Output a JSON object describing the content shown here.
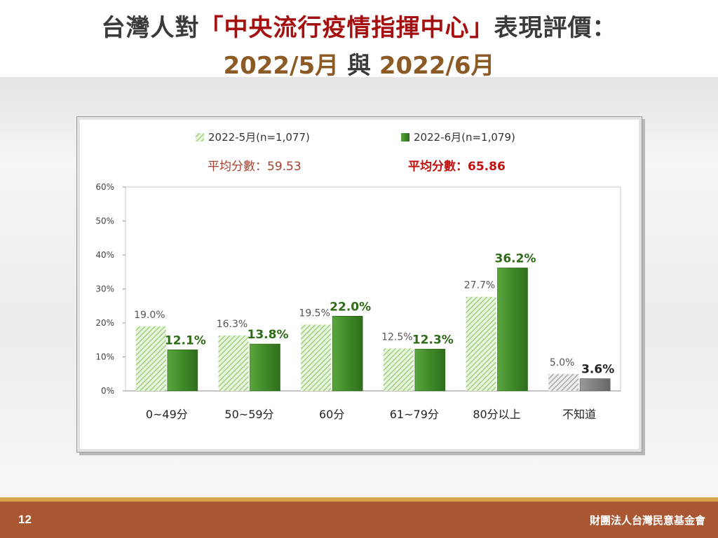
{
  "header": {
    "title_prefix": "台灣人對",
    "title_highlight": "「中央流行疫情指揮中心」",
    "title_suffix": "表現評價：",
    "subtitle_date1": "2022/5月",
    "subtitle_join": "與",
    "subtitle_date2": "2022/6月"
  },
  "footer": {
    "page_number": "12",
    "organization": "財團法人台灣民意基金會"
  },
  "colors": {
    "may_fill": "#c4e3ae",
    "june_fill": "#3f8a28",
    "dk_may_fill": "#b8b8b8",
    "dk_june_fill": "#7f7f7f",
    "avg_may_color": "#a6402f",
    "avg_june_color": "#c01010",
    "june_label_color": "#2e6b17"
  },
  "chart_data": {
    "type": "bar",
    "categories": [
      "0~49分",
      "50~59分",
      "60分",
      "61~79分",
      "80分以上",
      "不知道"
    ],
    "series": [
      {
        "name": "2022-5月(n=1,077)",
        "values": [
          19.0,
          16.3,
          19.5,
          12.5,
          27.7,
          5.0
        ],
        "labels": [
          "19.0%",
          "16.3%",
          "19.5%",
          "12.5%",
          "27.7%",
          "5.0%"
        ]
      },
      {
        "name": "2022-6月(n=1,079)",
        "values": [
          12.1,
          13.8,
          22.0,
          12.3,
          36.2,
          3.6
        ],
        "labels": [
          "12.1%",
          "13.8%",
          "22.0%",
          "12.3%",
          "36.2%",
          "3.6%"
        ]
      }
    ],
    "averages": [
      {
        "label": "平均分數：59.53",
        "series": "2022-5月(n=1,077)"
      },
      {
        "label": "平均分數：65.86",
        "series": "2022-6月(n=1,079)"
      }
    ],
    "yticks": [
      "0%",
      "10%",
      "20%",
      "30%",
      "40%",
      "50%",
      "60%"
    ],
    "ylim": [
      0,
      60
    ],
    "legend_position": "top",
    "grid": false
  }
}
